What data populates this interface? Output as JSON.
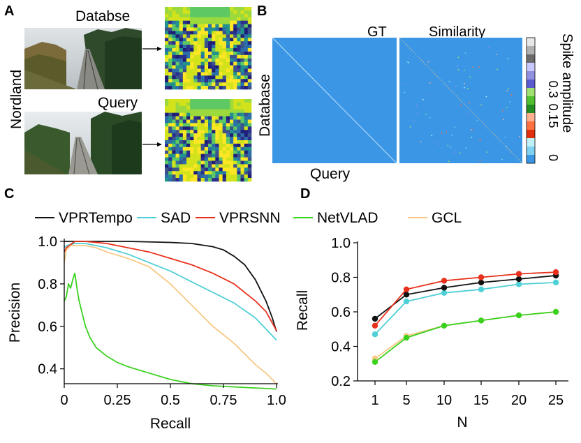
{
  "panels": {
    "a": {
      "letter": "A",
      "dataset": "Nordland",
      "database_label": "Databse",
      "query_label": "Query"
    },
    "b": {
      "letter": "B",
      "gt_label": "GT",
      "similarity_label": "Similarity",
      "y_label": "Database",
      "x_label": "Query",
      "colorbar": {
        "label": "Spike amplitude",
        "ticks": [
          "0.3",
          "0.15",
          "0"
        ],
        "colors": [
          "#e8e8e8",
          "#b0b0b0",
          "#6a6a6a",
          "#c8c8ff",
          "#9090e0",
          "#5a5ad0",
          "#a0e070",
          "#50c030",
          "#228b22",
          "#ffb090",
          "#ff7040",
          "#e03010",
          "#c0f0f8",
          "#80d0f0",
          "#3b97e5"
        ]
      },
      "background_color": "#3b97e5"
    },
    "c": {
      "letter": "C"
    },
    "d": {
      "letter": "D"
    }
  },
  "chart_data": [
    {
      "type": "line",
      "panel": "C",
      "xlabel": "Recall",
      "ylabel": "Precision",
      "xlim": [
        0,
        1
      ],
      "ylim": [
        0.33,
        1.0
      ],
      "xticks": [
        "0",
        "0.25",
        "0.5",
        "0.75",
        "1.0"
      ],
      "yticks": [
        "1.0",
        "0.8",
        "0.6",
        "0.4"
      ],
      "legend_position": "top",
      "series": [
        {
          "name": "VPRTempo",
          "color": "#111111",
          "x": [
            0,
            0.02,
            0.1,
            0.3,
            0.5,
            0.6,
            0.7,
            0.75,
            0.8,
            0.85,
            0.9,
            0.95,
            0.98,
            1.0
          ],
          "y": [
            1.0,
            1.0,
            1.0,
            1.0,
            0.995,
            0.99,
            0.975,
            0.96,
            0.93,
            0.89,
            0.82,
            0.72,
            0.64,
            0.575
          ]
        },
        {
          "name": "SAD",
          "color": "#4fd0d6",
          "x": [
            0,
            0.01,
            0.05,
            0.1,
            0.2,
            0.3,
            0.4,
            0.5,
            0.6,
            0.7,
            0.8,
            0.9,
            1.0
          ],
          "y": [
            0.97,
            0.98,
            0.99,
            0.99,
            0.97,
            0.94,
            0.9,
            0.86,
            0.81,
            0.76,
            0.71,
            0.64,
            0.535
          ]
        },
        {
          "name": "VPRSNN",
          "color": "#e8301c",
          "x": [
            0,
            0.01,
            0.05,
            0.1,
            0.2,
            0.3,
            0.4,
            0.5,
            0.6,
            0.7,
            0.8,
            0.9,
            0.95,
            1.0
          ],
          "y": [
            0.95,
            0.97,
            1.0,
            1.0,
            0.99,
            0.97,
            0.95,
            0.92,
            0.89,
            0.85,
            0.8,
            0.72,
            0.67,
            0.58
          ]
        },
        {
          "name": "NetVLAD",
          "color": "#3ad11e",
          "x": [
            0,
            0.01,
            0.02,
            0.03,
            0.04,
            0.05,
            0.06,
            0.07,
            0.08,
            0.1,
            0.12,
            0.15,
            0.2,
            0.25,
            0.3,
            0.4,
            0.5,
            0.6,
            0.7,
            0.8,
            0.9,
            1.0
          ],
          "y": [
            0.72,
            0.74,
            0.8,
            0.78,
            0.82,
            0.85,
            0.78,
            0.72,
            0.68,
            0.6,
            0.55,
            0.5,
            0.46,
            0.43,
            0.41,
            0.38,
            0.35,
            0.33,
            0.32,
            0.315,
            0.31,
            0.305
          ]
        },
        {
          "name": "GCL",
          "color": "#f8c884",
          "x": [
            0,
            0.01,
            0.03,
            0.05,
            0.1,
            0.15,
            0.2,
            0.3,
            0.4,
            0.5,
            0.6,
            0.7,
            0.8,
            0.9,
            0.95,
            1.0
          ],
          "y": [
            0.9,
            0.96,
            0.98,
            0.98,
            0.98,
            0.97,
            0.95,
            0.92,
            0.88,
            0.8,
            0.7,
            0.6,
            0.52,
            0.42,
            0.38,
            0.33
          ]
        }
      ]
    },
    {
      "type": "line",
      "panel": "D",
      "xlabel": "N",
      "ylabel": "Recall",
      "x": [
        1,
        5,
        10,
        15,
        20,
        25
      ],
      "xticks": [
        "1",
        "5",
        "10",
        "15",
        "20",
        "25"
      ],
      "ylim": [
        0.2,
        1.0
      ],
      "yticks": [
        "1.0",
        "0.8",
        "0.6",
        "0.4",
        "0.2"
      ],
      "series": [
        {
          "name": "VPRTempo",
          "color": "#111111",
          "values": [
            0.56,
            0.7,
            0.74,
            0.77,
            0.79,
            0.81
          ]
        },
        {
          "name": "SAD",
          "color": "#4fd0d6",
          "values": [
            0.47,
            0.66,
            0.71,
            0.73,
            0.76,
            0.77
          ]
        },
        {
          "name": "VPRSNN",
          "color": "#e8301c",
          "values": [
            0.52,
            0.73,
            0.78,
            0.8,
            0.82,
            0.83
          ]
        },
        {
          "name": "NetVLAD",
          "color": "#3ad11e",
          "values": [
            0.31,
            0.45,
            0.52,
            0.55,
            0.58,
            0.6
          ]
        },
        {
          "name": "GCL",
          "color": "#f8c884",
          "values": [
            0.33,
            0.46,
            0.52,
            0.55,
            0.58,
            0.6
          ]
        }
      ]
    }
  ]
}
